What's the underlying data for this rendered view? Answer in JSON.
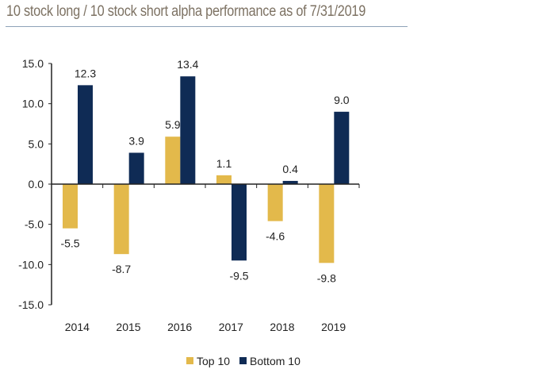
{
  "chart_data": {
    "type": "bar",
    "title": "10 stock long / 10 stock short alpha performance as of 7/31/2019",
    "categories": [
      "2014",
      "2015",
      "2016",
      "2017",
      "2018",
      "2019"
    ],
    "series": [
      {
        "name": "Top 10",
        "color": "#e3b94b",
        "values": [
          -5.5,
          -8.7,
          5.9,
          1.1,
          -4.6,
          -9.8
        ]
      },
      {
        "name": "Bottom 10",
        "color": "#0f2b55",
        "values": [
          12.3,
          3.9,
          13.4,
          -9.5,
          0.4,
          9.0
        ]
      }
    ],
    "ylim": [
      -15,
      15
    ],
    "yticks": [
      15,
      10,
      5,
      0,
      -5,
      -10,
      -15
    ],
    "xlabel": "",
    "ylabel": "",
    "grid": false,
    "legend": "bottom"
  }
}
